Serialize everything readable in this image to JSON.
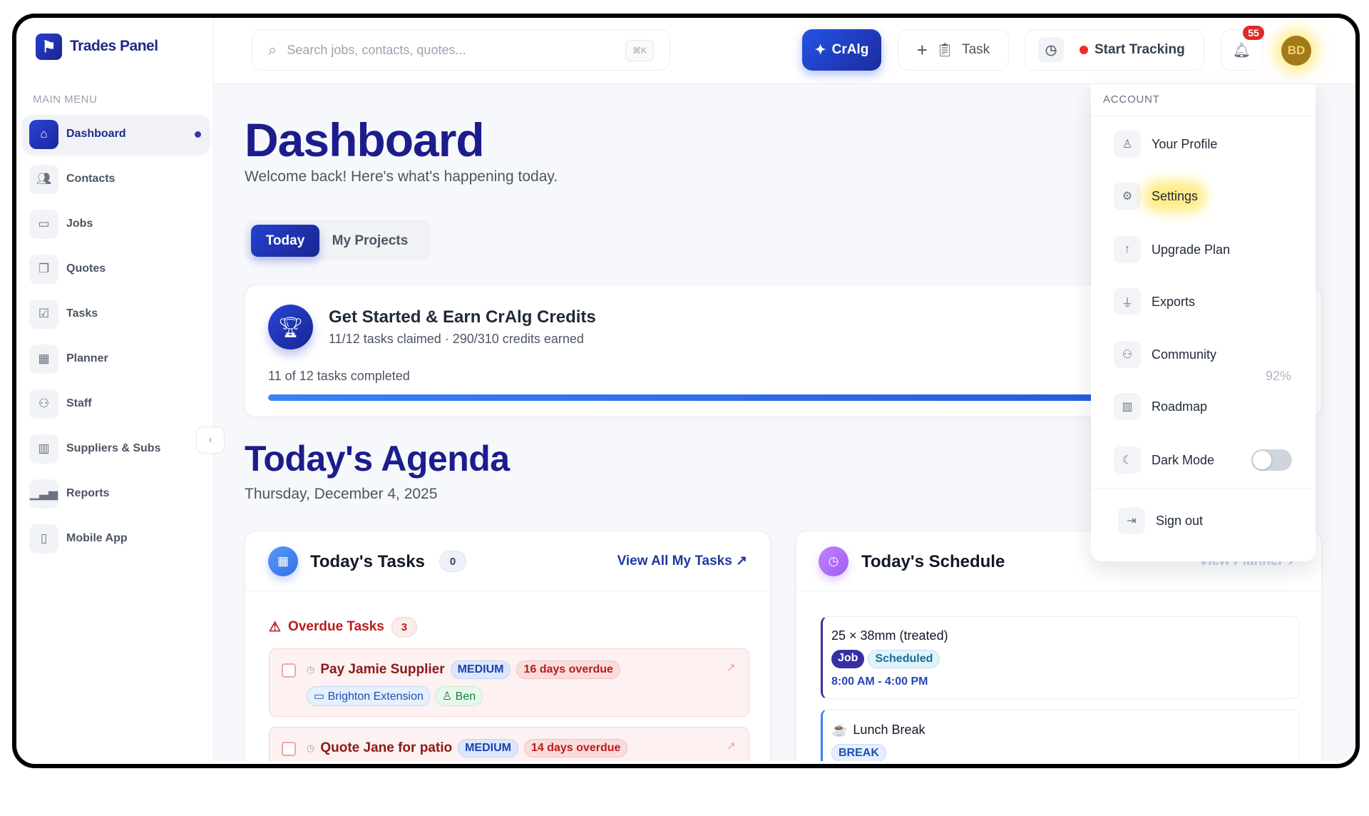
{
  "brand": {
    "name": "Trades Panel"
  },
  "sidebar": {
    "section_label": "MAIN MENU",
    "items": [
      {
        "label": "Dashboard",
        "icon": "home-icon",
        "active": true
      },
      {
        "label": "Contacts",
        "icon": "users-icon"
      },
      {
        "label": "Jobs",
        "icon": "briefcase-icon"
      },
      {
        "label": "Quotes",
        "icon": "clipboard-icon"
      },
      {
        "label": "Tasks",
        "icon": "check-square-icon"
      },
      {
        "label": "Planner",
        "icon": "calendar-icon"
      },
      {
        "label": "Staff",
        "icon": "staff-icon"
      },
      {
        "label": "Suppliers & Subs",
        "icon": "building-icon"
      },
      {
        "label": "Reports",
        "icon": "bar-chart-icon"
      },
      {
        "label": "Mobile App",
        "icon": "smartphone-icon"
      }
    ]
  },
  "header": {
    "search_placeholder": "Search jobs, contacts, quotes...",
    "shortcut": "⌘K",
    "cralg_label": "CrAlg",
    "task_label": "Task",
    "tracking_label": "Start Tracking",
    "notification_count": "55",
    "avatar_initials": "BD"
  },
  "main": {
    "title": "Dashboard",
    "subtitle": "Welcome back! Here's what's happening today.",
    "tabs": [
      {
        "label": "Today",
        "active": true
      },
      {
        "label": "My Projects"
      }
    ],
    "credits": {
      "title": "Get Started & Earn CrAlg Credits",
      "subtitle": "11/12 tasks claimed · 290/310 credits earned",
      "progress_text": "11 of 12 tasks completed",
      "percent_label": "92%",
      "progress": 92
    },
    "agenda": {
      "title": "Today's Agenda",
      "date": "Thursday, December 4, 2025"
    },
    "tasks": {
      "title": "Today's Tasks",
      "count": "0",
      "view_all": "View All My Tasks",
      "overdue_label": "Overdue Tasks",
      "overdue_count": "3",
      "items": [
        {
          "name": "Pay Jamie Supplier",
          "priority": "MEDIUM",
          "overdue": "16 days overdue",
          "project": "Brighton Extension",
          "person": "Ben"
        },
        {
          "name": "Quote Jane for patio",
          "priority": "MEDIUM",
          "overdue": "14 days overdue"
        }
      ]
    },
    "schedule": {
      "title": "Today's Schedule",
      "view_planner": "View Planner",
      "items": [
        {
          "title": "25 × 38mm (treated)",
          "type": "Job",
          "status": "Scheduled",
          "time": "8:00 AM - 4:00 PM"
        },
        {
          "title": "Lunch Break",
          "type": "BREAK",
          "emoji": "☕"
        }
      ]
    }
  },
  "account_menu": {
    "header": "ACCOUNT",
    "items": [
      {
        "label": "Your Profile",
        "icon": "user-icon"
      },
      {
        "label": "Settings",
        "icon": "gear-icon"
      },
      {
        "label": "Upgrade Plan",
        "icon": "arrow-up-icon"
      },
      {
        "label": "Exports",
        "icon": "plug-icon"
      },
      {
        "label": "Community",
        "icon": "users-icon"
      },
      {
        "label": "Roadmap",
        "icon": "map-icon"
      },
      {
        "label": "Dark Mode",
        "icon": "moon-icon",
        "toggle": false
      }
    ],
    "sign_out": "Sign out"
  },
  "colors": {
    "primary": "#1c1d8c",
    "accent": "#2554e6",
    "danger": "#e0282d"
  }
}
